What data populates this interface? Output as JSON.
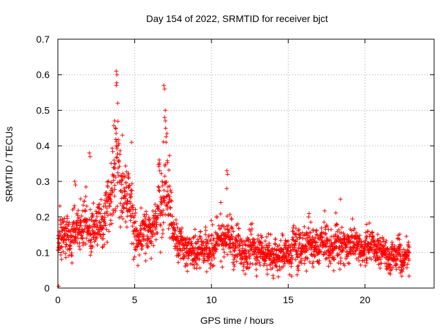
{
  "chart_data": {
    "type": "scatter",
    "title": "Day 154 of 2022, SRMTID for receiver bjct",
    "xlabel": "GPS time / hours",
    "ylabel": "SRMTID / TECUs",
    "xlim": [
      0,
      24.5
    ],
    "ylim": [
      0,
      0.7
    ],
    "xticks": [
      0,
      5,
      10,
      15,
      20
    ],
    "yticks": [
      0,
      0.1,
      0.2,
      0.3,
      0.4,
      0.5,
      0.6,
      0.7
    ],
    "grid": true,
    "marker": "+",
    "series": [
      {
        "name": "SRMTID",
        "color": "#ff0000",
        "envelope": [
          [
            0.0,
            0.14,
            0.05
          ],
          [
            0.5,
            0.15,
            0.05
          ],
          [
            1.0,
            0.17,
            0.05
          ],
          [
            1.5,
            0.16,
            0.05
          ],
          [
            2.0,
            0.18,
            0.06
          ],
          [
            2.5,
            0.17,
            0.05
          ],
          [
            3.0,
            0.19,
            0.06
          ],
          [
            3.5,
            0.24,
            0.08
          ],
          [
            3.8,
            0.32,
            0.12
          ],
          [
            4.2,
            0.26,
            0.08
          ],
          [
            4.8,
            0.2,
            0.06
          ],
          [
            5.2,
            0.15,
            0.05
          ],
          [
            5.8,
            0.15,
            0.05
          ],
          [
            6.3,
            0.17,
            0.05
          ],
          [
            6.8,
            0.26,
            0.09
          ],
          [
            7.1,
            0.3,
            0.11
          ],
          [
            7.5,
            0.14,
            0.04
          ],
          [
            8.0,
            0.12,
            0.04
          ],
          [
            9.0,
            0.11,
            0.035
          ],
          [
            10.0,
            0.12,
            0.04
          ],
          [
            11.0,
            0.14,
            0.05
          ],
          [
            12.0,
            0.11,
            0.04
          ],
          [
            13.0,
            0.11,
            0.04
          ],
          [
            14.0,
            0.1,
            0.035
          ],
          [
            15.0,
            0.11,
            0.04
          ],
          [
            15.5,
            0.14,
            0.05
          ],
          [
            16.0,
            0.11,
            0.04
          ],
          [
            16.8,
            0.13,
            0.045
          ],
          [
            17.5,
            0.11,
            0.04
          ],
          [
            18.4,
            0.13,
            0.045
          ],
          [
            19.0,
            0.11,
            0.04
          ],
          [
            20.3,
            0.12,
            0.04
          ],
          [
            21.0,
            0.1,
            0.035
          ],
          [
            22.0,
            0.1,
            0.035
          ],
          [
            22.9,
            0.09,
            0.035
          ]
        ],
        "x_end": 22.9,
        "sample_step": 0.01,
        "notable_points": [
          {
            "x": 3.8,
            "y": 0.61
          },
          {
            "x": 3.85,
            "y": 0.6
          },
          {
            "x": 3.8,
            "y": 0.57
          },
          {
            "x": 3.9,
            "y": 0.52
          },
          {
            "x": 3.7,
            "y": 0.47
          },
          {
            "x": 3.75,
            "y": 0.45
          },
          {
            "x": 4.2,
            "y": 0.43
          },
          {
            "x": 6.9,
            "y": 0.57
          },
          {
            "x": 6.95,
            "y": 0.56
          },
          {
            "x": 7.0,
            "y": 0.5
          },
          {
            "x": 6.95,
            "y": 0.48
          },
          {
            "x": 7.0,
            "y": 0.47
          },
          {
            "x": 7.05,
            "y": 0.41
          },
          {
            "x": 2.05,
            "y": 0.38
          },
          {
            "x": 2.1,
            "y": 0.37
          },
          {
            "x": 4.8,
            "y": 0.41
          },
          {
            "x": 11.0,
            "y": 0.33
          },
          {
            "x": 11.05,
            "y": 0.32
          },
          {
            "x": 11.0,
            "y": 0.28
          },
          {
            "x": 1.1,
            "y": 0.3
          },
          {
            "x": 1.15,
            "y": 0.29
          },
          {
            "x": 6.6,
            "y": 0.36
          },
          {
            "x": 18.4,
            "y": 0.25
          },
          {
            "x": 0.05,
            "y": 0.005
          }
        ]
      }
    ]
  }
}
